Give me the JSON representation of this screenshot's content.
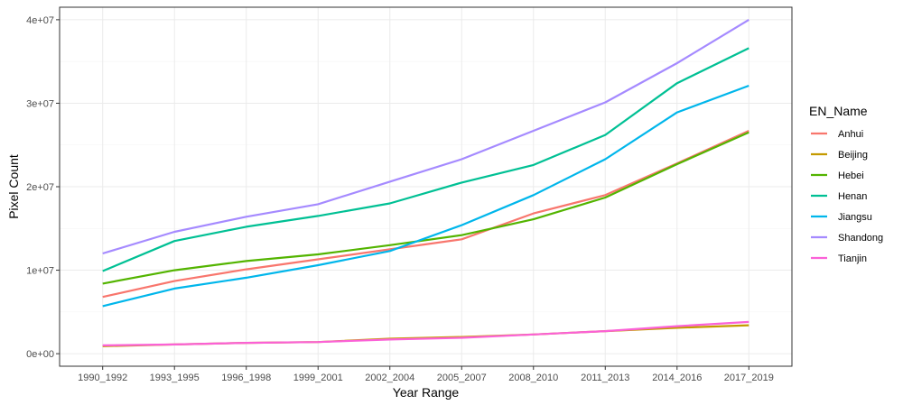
{
  "chart_data": {
    "type": "line",
    "title": "",
    "xlabel": "Year Range",
    "ylabel": "Pixel Count",
    "categories": [
      "1990_1992",
      "1993_1995",
      "1996_1998",
      "1999_2001",
      "2002_2004",
      "2005_2007",
      "2008_2010",
      "2011_2013",
      "2014_2016",
      "2017_2019"
    ],
    "ylim": [
      -1500000,
      41500000
    ],
    "yticks": [
      0,
      10000000,
      20000000,
      30000000,
      40000000
    ],
    "ytick_labels": [
      "0e+00",
      "1e+07",
      "2e+07",
      "3e+07",
      "4e+07"
    ],
    "grid": true,
    "legend": {
      "title": "EN_Name",
      "position": "right"
    },
    "series": [
      {
        "name": "Anhui",
        "color": "#F8766D",
        "values": [
          6800000,
          8700000,
          10100000,
          11300000,
          12500000,
          13700000,
          16800000,
          19000000,
          22800000,
          26700000
        ]
      },
      {
        "name": "Beijing",
        "color": "#C49A00",
        "values": [
          900000,
          1100000,
          1300000,
          1400000,
          1800000,
          2000000,
          2300000,
          2700000,
          3100000,
          3400000
        ]
      },
      {
        "name": "Hebei",
        "color": "#53B400",
        "values": [
          8400000,
          10000000,
          11100000,
          11900000,
          13000000,
          14200000,
          16100000,
          18700000,
          22700000,
          26500000
        ]
      },
      {
        "name": "Henan",
        "color": "#00C094",
        "values": [
          9900000,
          13500000,
          15200000,
          16500000,
          18000000,
          20500000,
          22600000,
          26200000,
          32400000,
          36600000
        ]
      },
      {
        "name": "Jiangsu",
        "color": "#00B6EB",
        "values": [
          5700000,
          7800000,
          9100000,
          10600000,
          12300000,
          15400000,
          19000000,
          23300000,
          28900000,
          32100000
        ]
      },
      {
        "name": "Shandong",
        "color": "#A58AFF",
        "values": [
          12000000,
          14600000,
          16400000,
          17900000,
          20600000,
          23300000,
          26700000,
          30100000,
          34800000,
          40000000
        ]
      },
      {
        "name": "Tianjin",
        "color": "#FB61D7",
        "values": [
          1000000,
          1100000,
          1300000,
          1400000,
          1700000,
          1900000,
          2300000,
          2700000,
          3300000,
          3800000
        ]
      }
    ]
  }
}
